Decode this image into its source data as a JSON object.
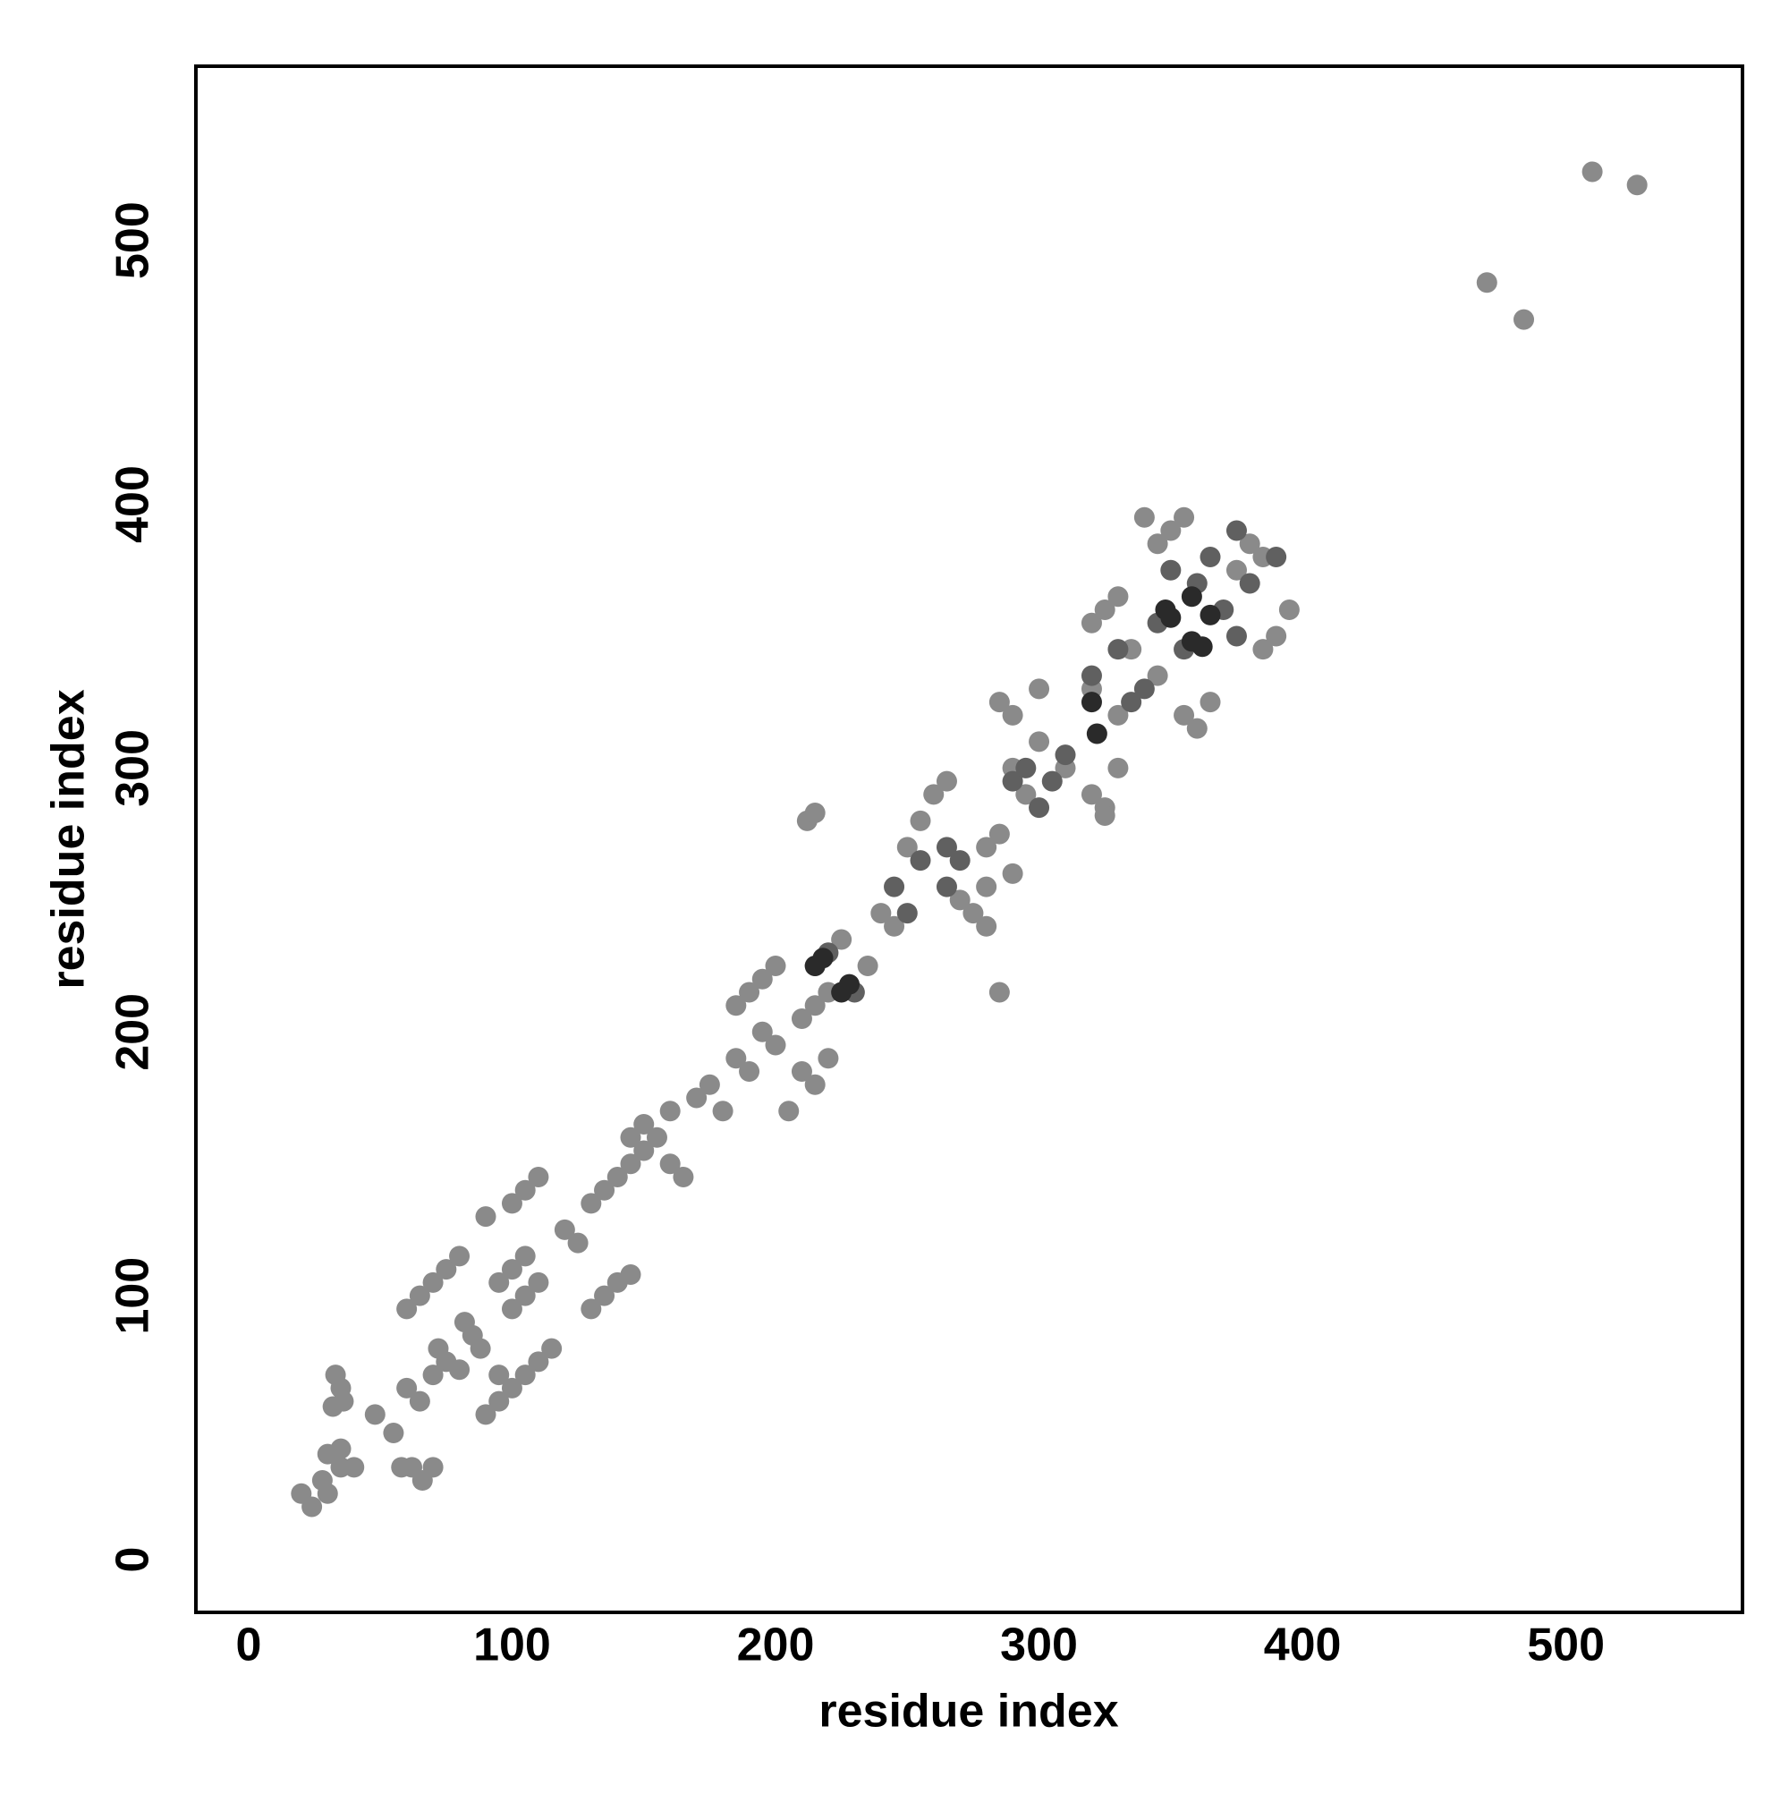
{
  "chart_data": {
    "type": "scatter",
    "xlabel": "residue index",
    "ylabel": "residue index",
    "xlim": [
      -20,
      567
    ],
    "ylim": [
      -20,
      566
    ],
    "xticks": [
      0,
      100,
      200,
      300,
      400,
      500
    ],
    "yticks": [
      0,
      100,
      200,
      300,
      400,
      500
    ],
    "grid": false,
    "series": [
      {
        "color": "#8a8a8a",
        "x": [
          20,
          24,
          28,
          30,
          35,
          30,
          40,
          35,
          32,
          35,
          33,
          36,
          48,
          55,
          58,
          62,
          66,
          70,
          60,
          65,
          70,
          75,
          72,
          80,
          85,
          88,
          82,
          60,
          65,
          70,
          75,
          80,
          95,
          100,
          105,
          110,
          115,
          90,
          95,
          100,
          105,
          110,
          95,
          100,
          105,
          90,
          100,
          105,
          110,
          130,
          135,
          140,
          145,
          120,
          125,
          130,
          135,
          140,
          145,
          150,
          155,
          145,
          150,
          160,
          165,
          160,
          170,
          175,
          180,
          185,
          190,
          195,
          200,
          190,
          195,
          200,
          185,
          210,
          215,
          220,
          205,
          210,
          215,
          220,
          212,
          215,
          225,
          235,
          240,
          245,
          250,
          255,
          260,
          265,
          270,
          275,
          280,
          285,
          280,
          290,
          280,
          285,
          290,
          295,
          300,
          310,
          285,
          290,
          300,
          320,
          325,
          330,
          325,
          320,
          330,
          335,
          345,
          320,
          325,
          330,
          355,
          360,
          365,
          345,
          350,
          355,
          385,
          390,
          395,
          375,
          380,
          385,
          340,
          470,
          484,
          510,
          527
        ],
        "values": [
          25,
          20,
          30,
          25,
          35,
          40,
          35,
          42,
          58,
          65,
          70,
          60,
          55,
          48,
          35,
          35,
          30,
          35,
          65,
          60,
          70,
          75,
          80,
          72,
          85,
          80,
          90,
          95,
          100,
          105,
          110,
          115,
          60,
          65,
          70,
          75,
          80,
          55,
          70,
          95,
          100,
          105,
          105,
          110,
          115,
          130,
          135,
          140,
          145,
          95,
          100,
          105,
          108,
          125,
          120,
          135,
          140,
          145,
          150,
          155,
          160,
          160,
          165,
          150,
          145,
          170,
          175,
          180,
          170,
          190,
          185,
          200,
          195,
          215,
          220,
          225,
          210,
          185,
          180,
          190,
          170,
          205,
          210,
          215,
          280,
          283,
          235,
          225,
          245,
          240,
          270,
          280,
          290,
          295,
          250,
          245,
          240,
          215,
          255,
          260,
          270,
          275,
          300,
          290,
          310,
          300,
          325,
          320,
          330,
          290,
          285,
          300,
          282,
          330,
          320,
          345,
          335,
          355,
          360,
          365,
          320,
          315,
          325,
          385,
          390,
          395,
          345,
          350,
          360,
          375,
          385,
          380,
          395,
          484,
          470,
          526,
          521
        ]
      },
      {
        "color": "#606060",
        "x": [
          215,
          220,
          230,
          245,
          250,
          255,
          265,
          265,
          270,
          290,
          295,
          300,
          305,
          310,
          320,
          335,
          330,
          340,
          345,
          355,
          360,
          370,
          365,
          380,
          375,
          390,
          350,
          375
        ],
        "values": [
          225,
          230,
          215,
          255,
          245,
          265,
          255,
          270,
          265,
          295,
          300,
          285,
          295,
          305,
          335,
          325,
          345,
          330,
          355,
          345,
          370,
          360,
          380,
          370,
          390,
          380,
          375,
          350
        ]
      },
      {
        "color": "#2a2a2a",
        "x": [
          215,
          218,
          225,
          228,
          320,
          322,
          348,
          350,
          358,
          362,
          358,
          365
        ],
        "values": [
          225,
          228,
          215,
          218,
          325,
          313,
          360,
          357,
          348,
          346,
          365,
          358
        ]
      }
    ]
  }
}
